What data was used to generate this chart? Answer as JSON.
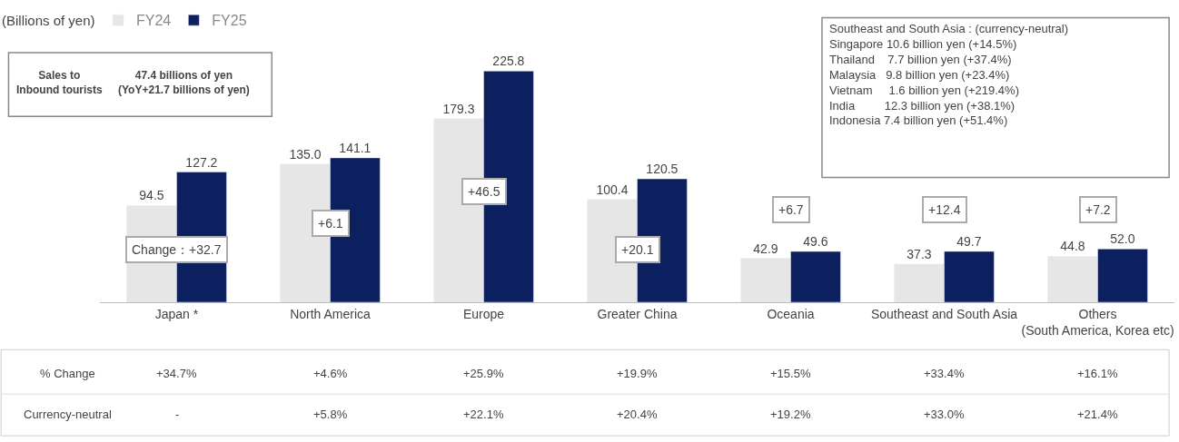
{
  "chart_data": {
    "type": "bar",
    "categories": [
      "Japan *",
      "North America",
      "Europe",
      "Greater China",
      "Oceania",
      "Southeast and South Asia",
      "Others\n(South America, Korea etc)"
    ],
    "series": [
      {
        "name": "FY24",
        "color": "#e6e6e6",
        "values": [
          94.5,
          135.0,
          179.3,
          100.4,
          42.9,
          37.3,
          44.8
        ],
        "value_labels": [
          "94.5",
          "135.0",
          "179.3",
          "100.4",
          "42.9",
          "37.3",
          "44.8"
        ]
      },
      {
        "name": "FY25",
        "color": "#0c1f5e",
        "values": [
          127.2,
          141.1,
          225.8,
          120.5,
          49.6,
          49.7,
          52.0
        ],
        "value_labels": [
          "127.2",
          "141.1",
          "225.8",
          "120.5",
          "49.6",
          "49.7",
          "52.0"
        ]
      }
    ],
    "legend": "top left",
    "annotations": [
      "(Billions of yen)",
      "Sales to\nInbound tourists",
      "47.4 billions of yen\n(YoY+21.7 billions of yen)",
      "Southeast and South Asia : (currency-neutral)\nSingapore 10.6 billion yen (+14.5%)\nThailand    7.7 billion yen (+37.4%)\nMalaysia   9.8 billion yen (+23.4%)\nVietnam     1.6 billion yen (+219.4%)\nIndia         12.3 billion yen (+38.1%)\nIndonesia 7.4 billion yen (+51.4%)",
      "Change：+32.7",
      "+6.1",
      "+46.5",
      "+20.1",
      "+6.7",
      "+12.4",
      "+7.2",
      "% Change",
      "+34.7%",
      "+4.6%",
      "+25.9%",
      "+19.9%",
      "+15.5%",
      "+33.4%",
      "+16.1%",
      "Currency-neutral",
      "-",
      "+5.8%",
      "+22.1%",
      "+20.4%",
      "+19.2%",
      "+33.0%",
      "+21.4%"
    ]
  }
}
